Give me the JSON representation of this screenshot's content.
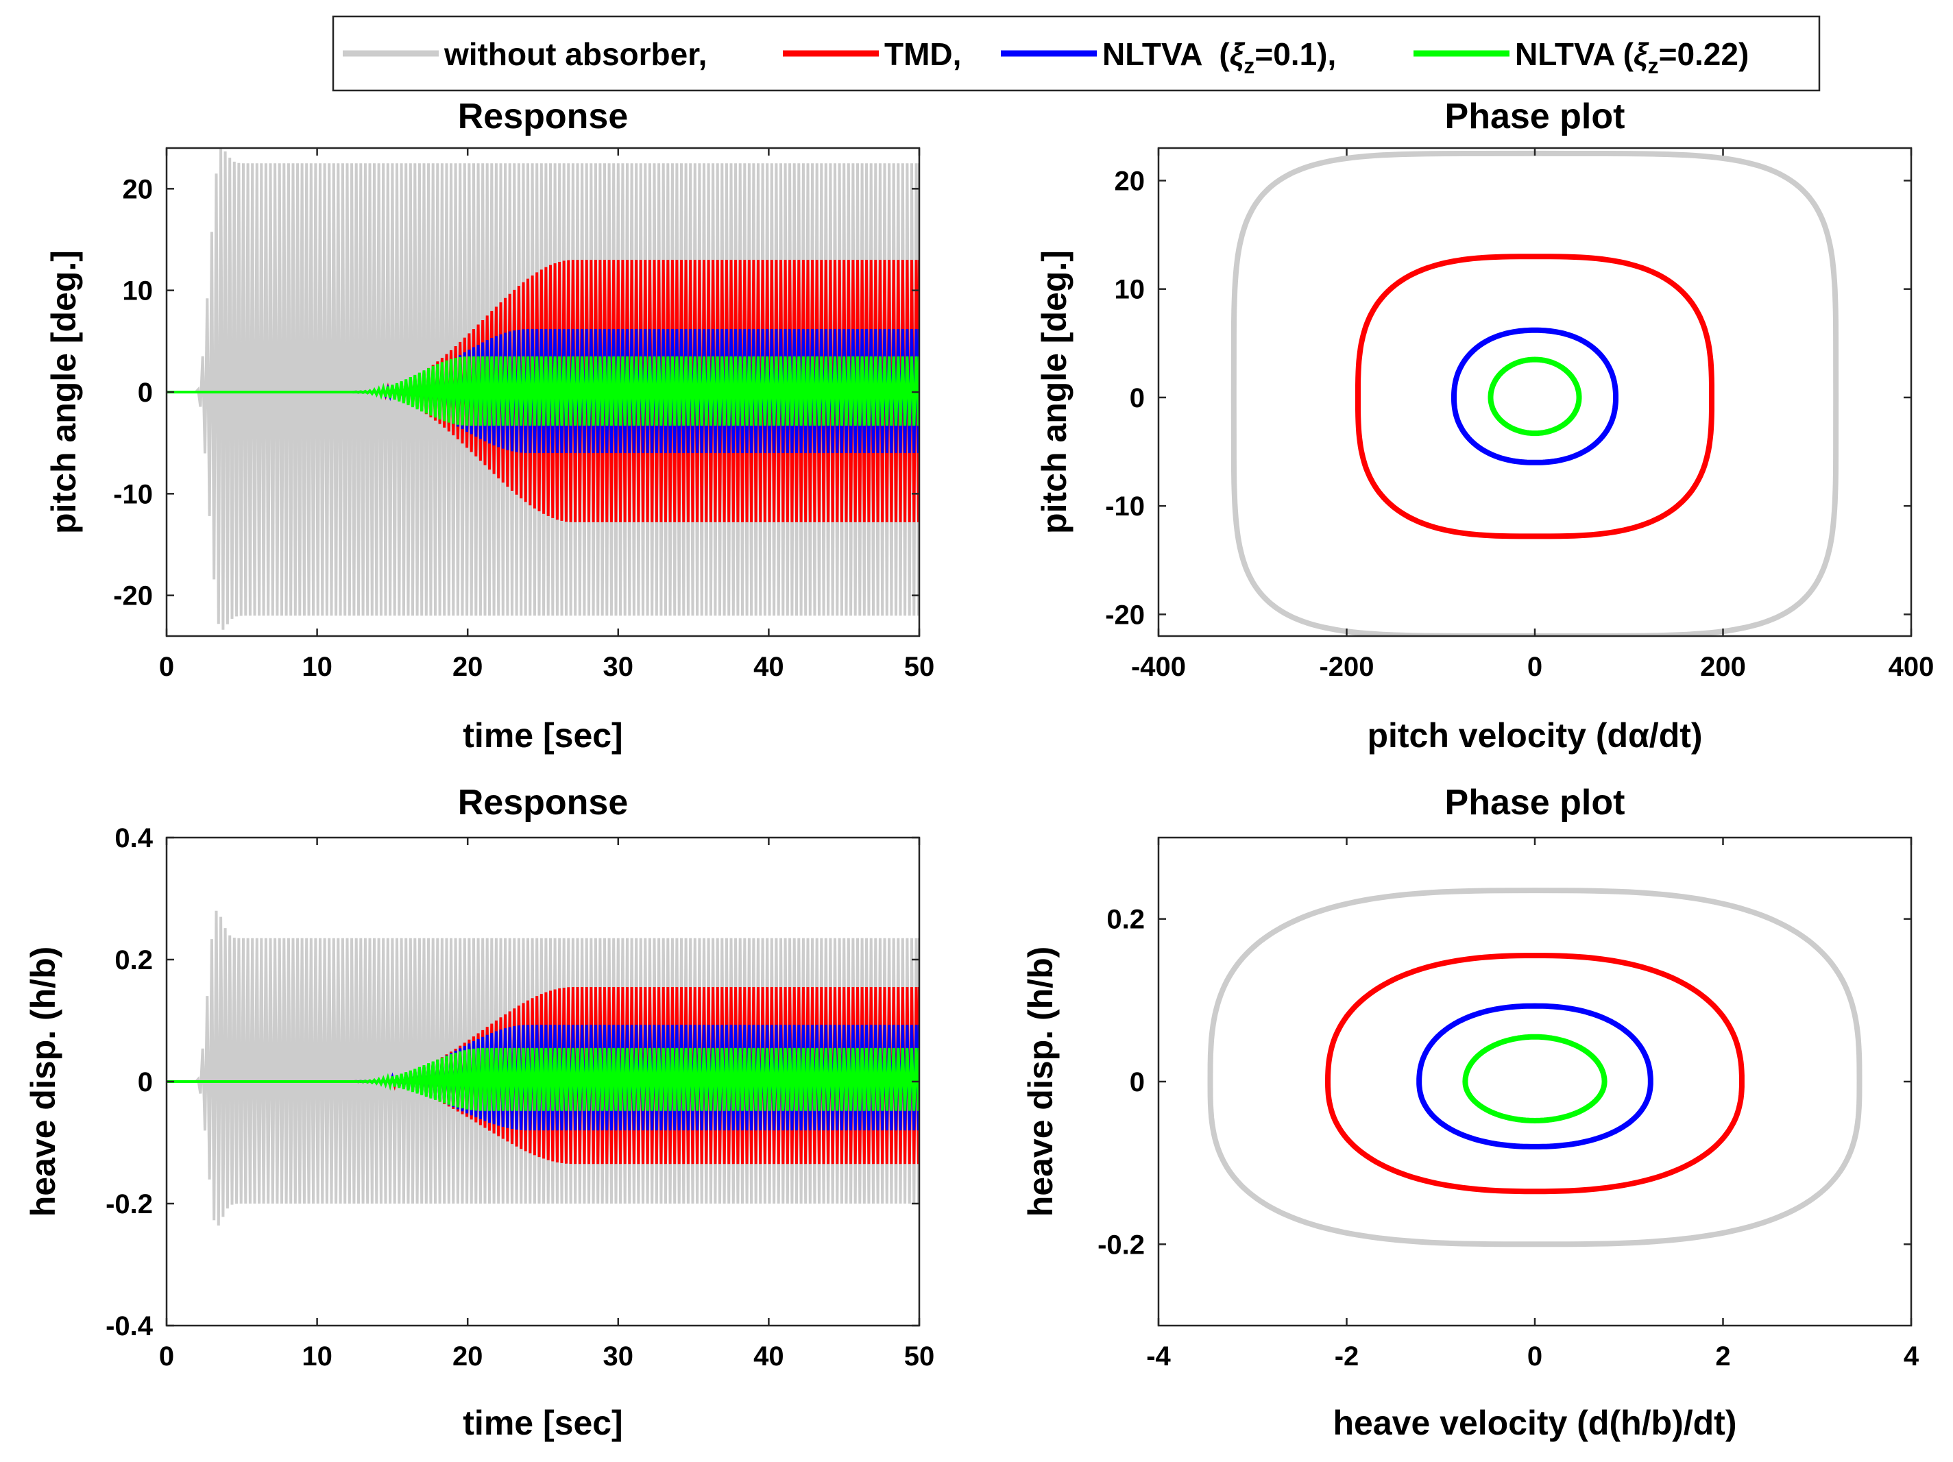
{
  "legend": {
    "entries": [
      {
        "label": "without absorber,",
        "color": "#cccccc"
      },
      {
        "label": "TMD,",
        "color": "#ff0000"
      },
      {
        "label": "NLTVA  (ξz=0.1),",
        "color": "#0000ff",
        "xi_symbol": "ξ",
        "xi_sub": "z",
        "xi_value": "=0.1),",
        "prefix": "NLTVA  ("
      },
      {
        "label": "NLTVA (ξz=0.22)",
        "color": "#00ff00",
        "xi_symbol": "ξ",
        "xi_sub": "z",
        "xi_value": "=0.22)",
        "prefix": "NLTVA ("
      }
    ]
  },
  "chart_data": [
    {
      "type": "line",
      "subtype": "envelope-oscillation",
      "title": "Response",
      "xlabel": "time [sec]",
      "ylabel": "pitch angle [deg.]",
      "xlim": [
        0,
        50
      ],
      "ylim": [
        -24,
        24
      ],
      "xticks": [
        0,
        10,
        20,
        30,
        40,
        50
      ],
      "yticks": [
        -20,
        -10,
        0,
        10,
        20
      ],
      "series": [
        {
          "name": "without absorber",
          "color": "#cccccc",
          "final_upper": 22.5,
          "final_lower": -22,
          "growth_start": 2,
          "growth_end": 3.6,
          "peak": 24
        },
        {
          "name": "TMD",
          "color": "#ff0000",
          "final_upper": 13,
          "final_lower": -12.8,
          "growth_start": 12,
          "growth_end": 27
        },
        {
          "name": "NLTVA (ξz=0.1)",
          "color": "#0000ff",
          "final_upper": 6.2,
          "final_lower": -6,
          "growth_start": 12,
          "growth_end": 24
        },
        {
          "name": "NLTVA (ξz=0.22)",
          "color": "#00ff00",
          "final_upper": 3.5,
          "final_lower": -3.3,
          "growth_start": 12,
          "growth_end": 20
        }
      ]
    },
    {
      "type": "line",
      "subtype": "phase",
      "title": "Phase plot",
      "xlabel": "pitch velocity (dα/dt)",
      "ylabel": "pitch angle [deg.]",
      "xlim": [
        -400,
        400
      ],
      "ylim": [
        -22,
        23
      ],
      "xticks": [
        -400,
        -200,
        0,
        200,
        400
      ],
      "yticks": [
        -20,
        -10,
        0,
        10,
        20
      ],
      "series": [
        {
          "name": "without absorber",
          "color": "#cccccc",
          "xmax": 320,
          "ymax": 22.5,
          "ymin": -22,
          "squareness": 5
        },
        {
          "name": "TMD",
          "color": "#ff0000",
          "xmax": 188,
          "ymax": 13,
          "ymin": -12.8,
          "squareness": 3
        },
        {
          "name": "NLTVA (ξz=0.1)",
          "color": "#0000ff",
          "xmax": 86,
          "ymax": 6.2,
          "ymin": -6,
          "squareness": 2.2
        },
        {
          "name": "NLTVA (ξz=0.22)",
          "color": "#00ff00",
          "xmax": 47,
          "ymax": 3.5,
          "ymin": -3.3,
          "squareness": 2
        }
      ]
    },
    {
      "type": "line",
      "subtype": "envelope-oscillation",
      "title": "Response",
      "xlabel": "time [sec]",
      "ylabel": "heave disp. (h/b)",
      "xlim": [
        0,
        50
      ],
      "ylim": [
        -0.4,
        0.4
      ],
      "xticks": [
        0,
        10,
        20,
        30,
        40,
        50
      ],
      "yticks": [
        -0.4,
        -0.2,
        0,
        0.2,
        0.4
      ],
      "series": [
        {
          "name": "without absorber",
          "color": "#cccccc",
          "final_upper": 0.235,
          "final_lower": -0.2,
          "growth_start": 2,
          "growth_end": 3.3,
          "peak": 0.28
        },
        {
          "name": "TMD",
          "color": "#ff0000",
          "final_upper": 0.155,
          "final_lower": -0.135,
          "growth_start": 12,
          "growth_end": 27
        },
        {
          "name": "NLTVA (ξz=0.1)",
          "color": "#0000ff",
          "final_upper": 0.093,
          "final_lower": -0.08,
          "growth_start": 12,
          "growth_end": 24
        },
        {
          "name": "NLTVA (ξz=0.22)",
          "color": "#00ff00",
          "final_upper": 0.055,
          "final_lower": -0.048,
          "growth_start": 12,
          "growth_end": 21
        }
      ]
    },
    {
      "type": "line",
      "subtype": "phase",
      "title": "Phase plot",
      "xlabel": "heave velocity (d(h/b)/dt)",
      "ylabel": "heave disp. (h/b)",
      "xlim": [
        -4,
        4
      ],
      "ylim": [
        -0.3,
        0.3
      ],
      "xticks": [
        -4,
        -2,
        0,
        2,
        4
      ],
      "yticks": [
        -0.2,
        0,
        0.2
      ],
      "series": [
        {
          "name": "without absorber",
          "color": "#cccccc",
          "xmax": 3.45,
          "ymax": 0.235,
          "ymin": -0.2,
          "squareness": 3
        },
        {
          "name": "TMD",
          "color": "#ff0000",
          "xmax": 2.2,
          "ymax": 0.155,
          "ymin": -0.135,
          "squareness": 2.4
        },
        {
          "name": "NLTVA (ξz=0.1)",
          "color": "#0000ff",
          "xmax": 1.23,
          "ymax": 0.093,
          "ymin": -0.08,
          "squareness": 2.2
        },
        {
          "name": "NLTVA (ξz=0.22)",
          "color": "#00ff00",
          "xmax": 0.74,
          "ymax": 0.055,
          "ymin": -0.048,
          "squareness": 2
        }
      ]
    }
  ]
}
